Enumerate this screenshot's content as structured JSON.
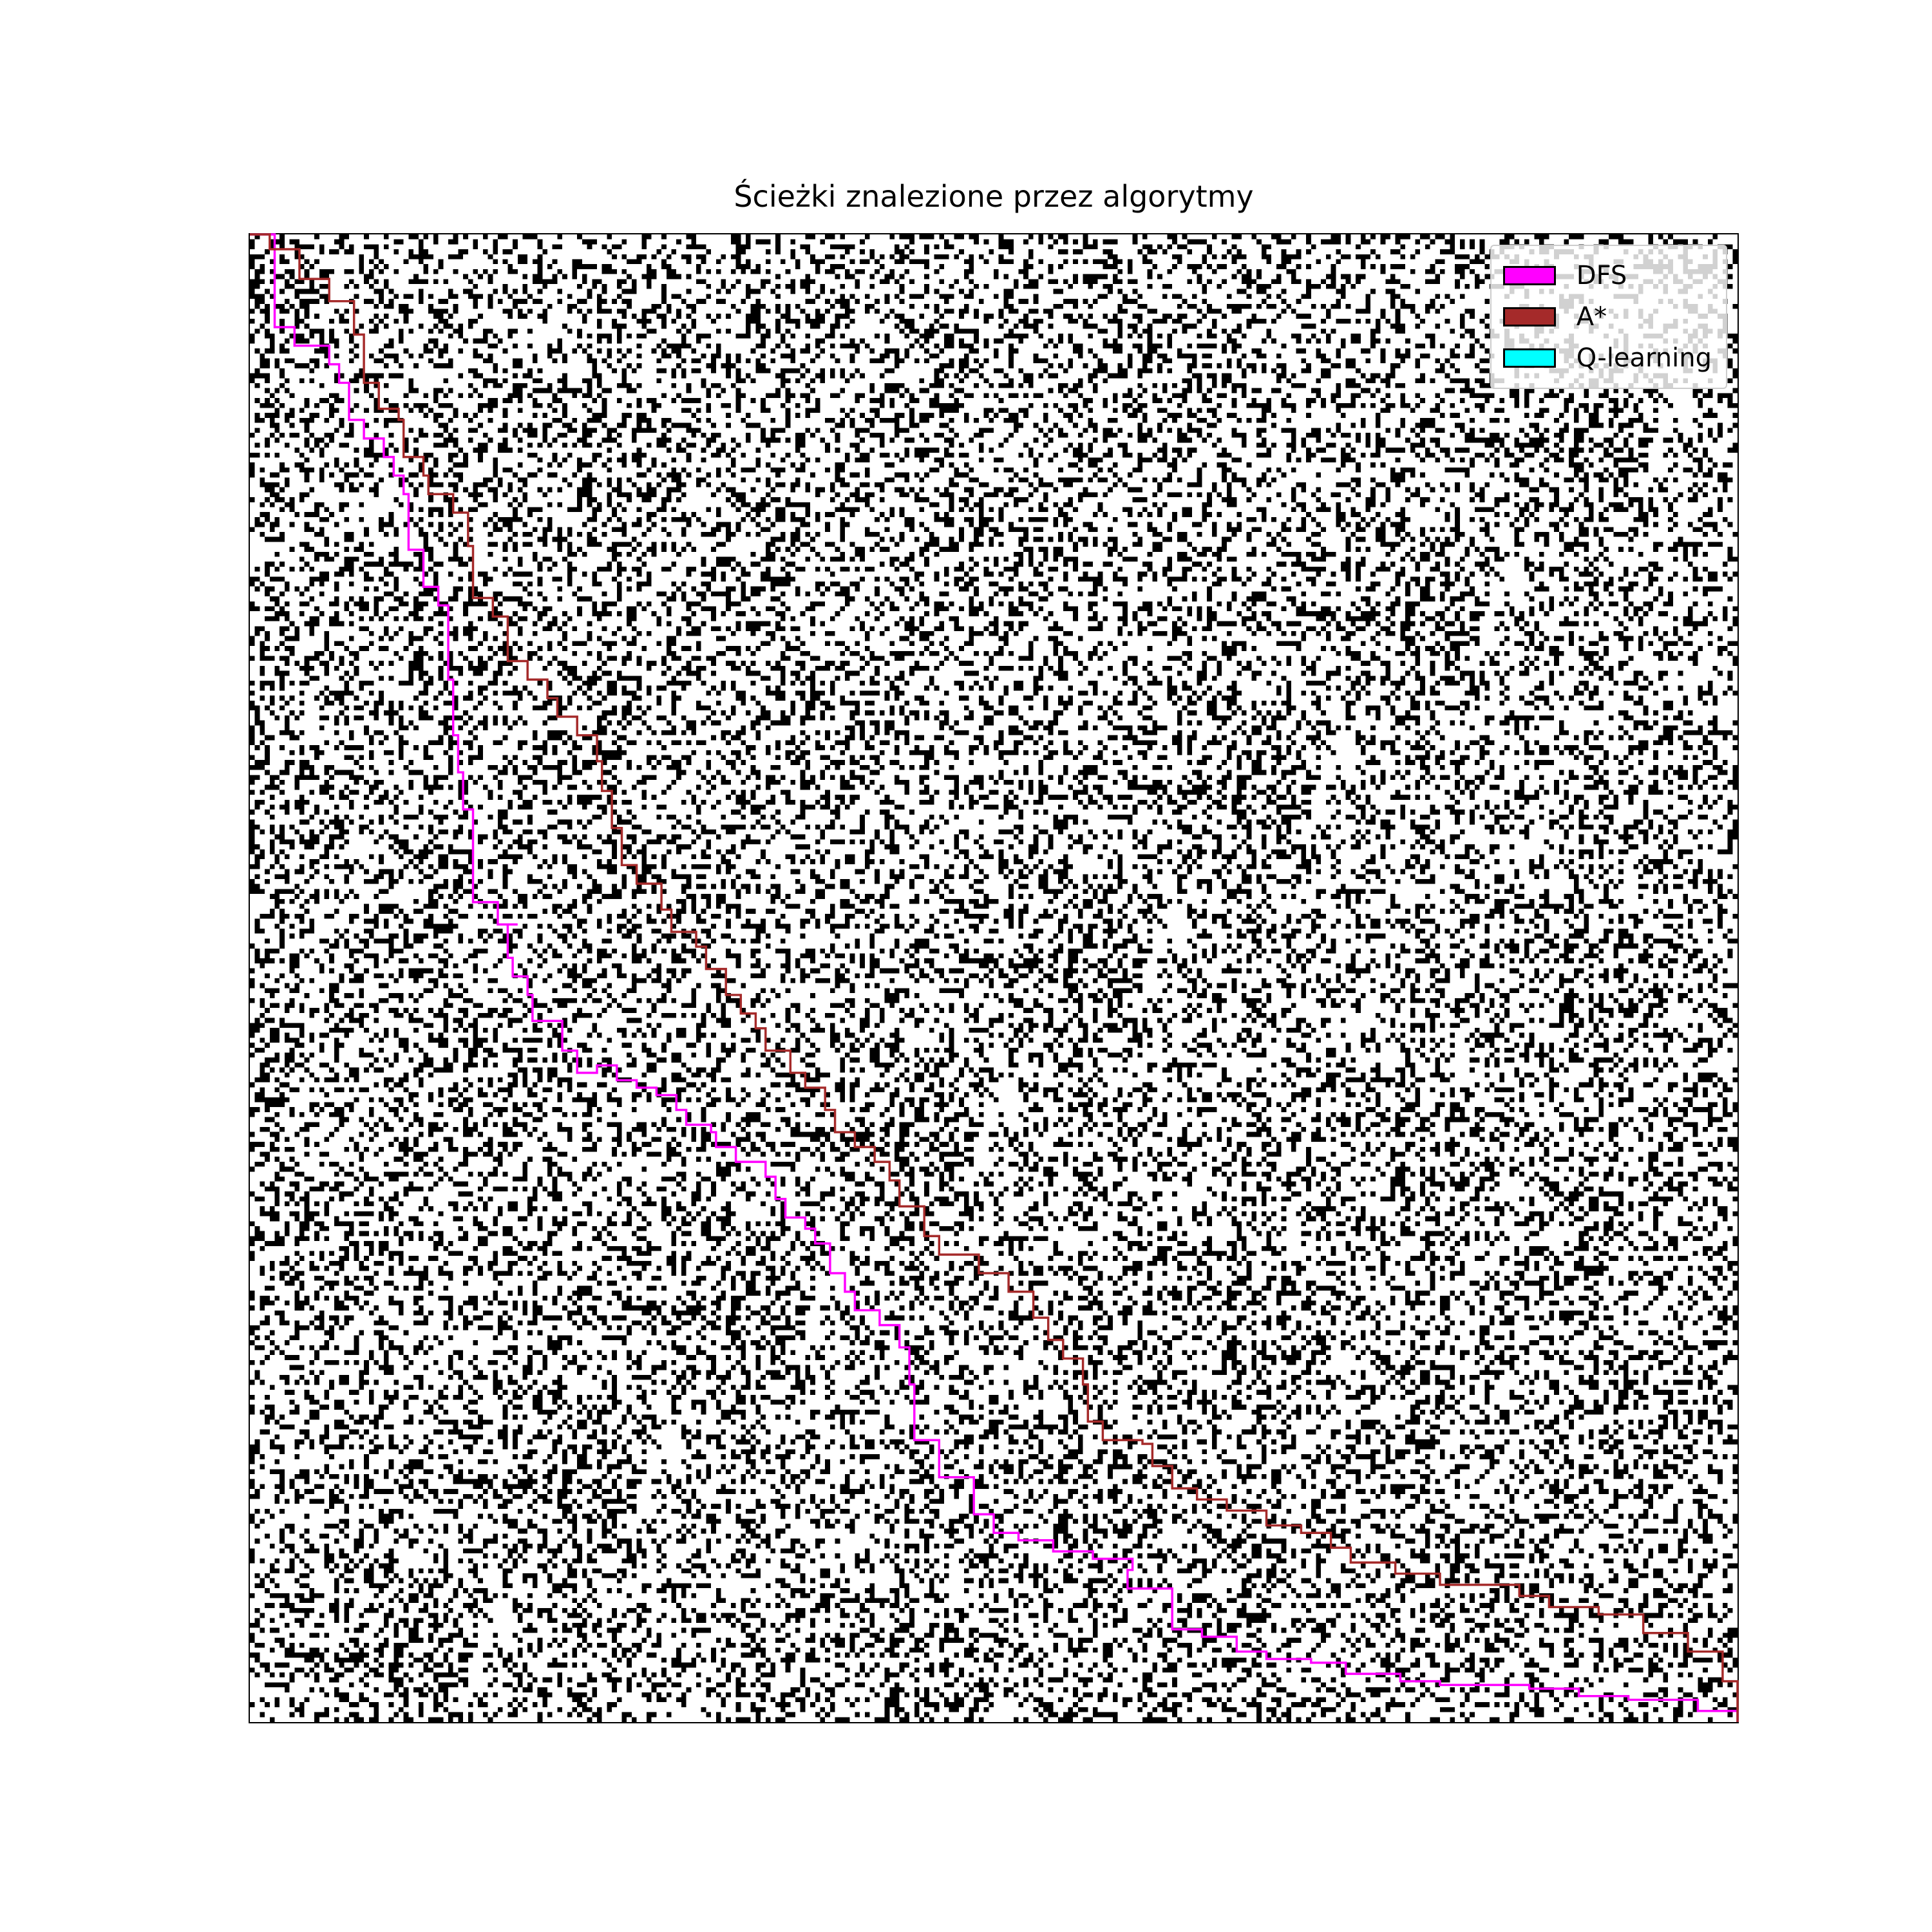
{
  "chart_data": {
    "type": "heatmap",
    "title": "Ścieżki znalezione przez algorytmy",
    "grid": {
      "rows": 300,
      "cols": 300,
      "obstacle_fraction": 0.3,
      "obstacle_color": "#000000",
      "free_color": "#ffffff",
      "start": [
        0,
        0
      ],
      "goal": [
        299,
        299
      ]
    },
    "axes_visible": false,
    "legend_position": "top-right",
    "series": [
      {
        "name": "DFS",
        "color": "#ff00ff",
        "points": [
          [
            0,
            0
          ],
          [
            5,
            25
          ],
          [
            5,
            25
          ],
          [
            8,
            25
          ],
          [
            9,
            30
          ],
          [
            16,
            35
          ],
          [
            18,
            40
          ],
          [
            20,
            50
          ],
          [
            23,
            55
          ],
          [
            27,
            60
          ],
          [
            29,
            65
          ],
          [
            31,
            70
          ],
          [
            32,
            85
          ],
          [
            35,
            95
          ],
          [
            38,
            100
          ],
          [
            40,
            110
          ],
          [
            40,
            120
          ],
          [
            41,
            125
          ],
          [
            41,
            135
          ],
          [
            42,
            145
          ],
          [
            43,
            155
          ],
          [
            45,
            165
          ],
          [
            45,
            180
          ],
          [
            50,
            186
          ],
          [
            54,
            186
          ],
          [
            52,
            195
          ],
          [
            53,
            200
          ],
          [
            56,
            205
          ],
          [
            57,
            212
          ],
          [
            61,
            212
          ],
          [
            63,
            220
          ],
          [
            66,
            226
          ],
          [
            70,
            224
          ],
          [
            74,
            228
          ],
          [
            78,
            230
          ],
          [
            82,
            232
          ],
          [
            86,
            236
          ],
          [
            88,
            240
          ],
          [
            93,
            242
          ],
          [
            94,
            246
          ],
          [
            98,
            250
          ],
          [
            104,
            254
          ],
          [
            106,
            260
          ],
          [
            108,
            265
          ],
          [
            112,
            268
          ],
          [
            114,
            272
          ],
          [
            117,
            280
          ],
          [
            120,
            285
          ],
          [
            122,
            290
          ],
          [
            127,
            294
          ],
          [
            131,
            300
          ],
          [
            133,
            310
          ],
          [
            134,
            325
          ],
          [
            139,
            335
          ],
          [
            146,
            345
          ],
          [
            150,
            350
          ],
          [
            155,
            352
          ],
          [
            162,
            355
          ],
          [
            170,
            357
          ],
          [
            178,
            360
          ],
          [
            177,
            365
          ],
          [
            186,
            376
          ],
          [
            192,
            378
          ],
          [
            196,
            378
          ],
          [
            199,
            382
          ],
          [
            205,
            384
          ],
          [
            214,
            385
          ],
          [
            221,
            388
          ],
          [
            232,
            390
          ],
          [
            240,
            391
          ],
          [
            248,
            391
          ],
          [
            258,
            392
          ],
          [
            268,
            394
          ],
          [
            278,
            395
          ],
          [
            292,
            398
          ],
          [
            300,
            401
          ]
        ]
      },
      {
        "name": "A*",
        "color": "#a52a2a",
        "points": [
          [
            0,
            0
          ],
          [
            4,
            4
          ],
          [
            10,
            12
          ],
          [
            16,
            18
          ],
          [
            21,
            22
          ],
          [
            21,
            27
          ],
          [
            23,
            40
          ],
          [
            26,
            47
          ],
          [
            30,
            50
          ],
          [
            31,
            60
          ],
          [
            35,
            65
          ],
          [
            36,
            70
          ],
          [
            41,
            75
          ],
          [
            44,
            84
          ],
          [
            45,
            98
          ],
          [
            49,
            103
          ],
          [
            52,
            108
          ],
          [
            52,
            115
          ],
          [
            56,
            120
          ],
          [
            60,
            125
          ],
          [
            62,
            130
          ],
          [
            66,
            135
          ],
          [
            70,
            142
          ],
          [
            71,
            150
          ],
          [
            73,
            160
          ],
          [
            75,
            170
          ],
          [
            78,
            175
          ],
          [
            83,
            182
          ],
          [
            85,
            188
          ],
          [
            90,
            192
          ],
          [
            92,
            198
          ],
          [
            96,
            205
          ],
          [
            99,
            210
          ],
          [
            102,
            214
          ],
          [
            104,
            220
          ],
          [
            109,
            226
          ],
          [
            112,
            230
          ],
          [
            116,
            236
          ],
          [
            118,
            242
          ],
          [
            122,
            246
          ],
          [
            126,
            250
          ],
          [
            129,
            255
          ],
          [
            131,
            262
          ],
          [
            136,
            270
          ],
          [
            139,
            275
          ],
          [
            147,
            280
          ],
          [
            153,
            285
          ],
          [
            158,
            292
          ],
          [
            161,
            298
          ],
          [
            164,
            303
          ],
          [
            168,
            310
          ],
          [
            169,
            320
          ],
          [
            172,
            325
          ],
          [
            180,
            326
          ],
          [
            182,
            332
          ],
          [
            186,
            338
          ],
          [
            191,
            341
          ],
          [
            197,
            344
          ],
          [
            205,
            348
          ],
          [
            212,
            350
          ],
          [
            218,
            354
          ],
          [
            222,
            358
          ],
          [
            231,
            361
          ],
          [
            240,
            364
          ],
          [
            248,
            364
          ],
          [
            256,
            367
          ],
          [
            262,
            370
          ],
          [
            272,
            372
          ],
          [
            281,
            377
          ],
          [
            290,
            382
          ],
          [
            297,
            390
          ],
          [
            300,
            401
          ]
        ]
      },
      {
        "name": "Q-learning",
        "color": "#00ffff",
        "points": []
      }
    ],
    "xlim": [
      0,
      300
    ],
    "ylim": [
      0,
      300
    ]
  }
}
